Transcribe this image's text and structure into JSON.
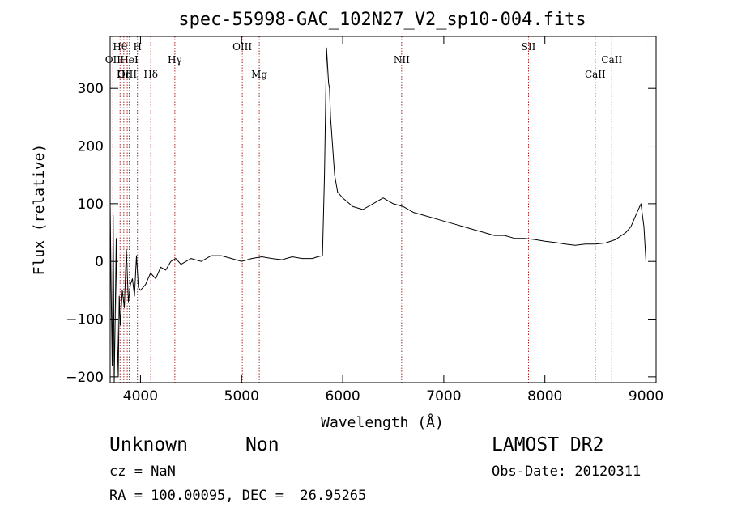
{
  "chart_data": {
    "type": "line",
    "title": "spec-55998-GAC_102N27_V2_sp10-004.fits",
    "xlabel": "Wavelength (Å)",
    "ylabel": "Flux (relative)",
    "xlim": [
      3700,
      9100
    ],
    "ylim": [
      -210,
      390
    ],
    "xticks": [
      4000,
      5000,
      6000,
      7000,
      8000,
      9000
    ],
    "yticks": [
      -200,
      -100,
      0,
      100,
      200,
      300
    ],
    "grid": false,
    "series": [
      {
        "x": [
          3700,
          3710,
          3720,
          3730,
          3740,
          3750,
          3760,
          3770,
          3780,
          3790,
          3800,
          3820,
          3840,
          3860,
          3880,
          3900,
          3920,
          3940,
          3960,
          3980,
          4000,
          4050,
          4100,
          4150,
          4200,
          4250,
          4300,
          4350,
          4400,
          4500,
          4600,
          4700,
          4800,
          4900,
          5000,
          5100,
          5200,
          5300,
          5400,
          5500,
          5600,
          5700,
          5750,
          5800,
          5820,
          5840,
          5850,
          5860,
          5870,
          5880,
          5900,
          5920,
          5950,
          6000,
          6100,
          6200,
          6300,
          6400,
          6500,
          6600,
          6700,
          6800,
          6900,
          7000,
          7100,
          7200,
          7300,
          7400,
          7500,
          7600,
          7700,
          7800,
          7900,
          8000,
          8100,
          8200,
          8300,
          8400,
          8500,
          8600,
          8700,
          8800,
          8850,
          8900,
          8950,
          8980,
          9000
        ],
        "y": [
          100,
          -50,
          -180,
          80,
          -210,
          -100,
          40,
          -120,
          -200,
          -60,
          -110,
          -50,
          -80,
          20,
          -70,
          -40,
          -30,
          -60,
          10,
          -45,
          -50,
          -40,
          -20,
          -30,
          -10,
          -15,
          0,
          5,
          -5,
          5,
          0,
          10,
          10,
          5,
          0,
          5,
          8,
          5,
          3,
          8,
          5,
          5,
          8,
          10,
          150,
          370,
          340,
          310,
          300,
          250,
          200,
          150,
          120,
          110,
          95,
          90,
          100,
          110,
          100,
          95,
          85,
          80,
          75,
          70,
          65,
          60,
          55,
          50,
          45,
          45,
          40,
          40,
          38,
          35,
          33,
          30,
          28,
          30,
          30,
          32,
          38,
          50,
          60,
          80,
          100,
          60,
          0
        ]
      }
    ],
    "line_markers": [
      {
        "label": "Hθ",
        "x": 3798,
        "row": 1
      },
      {
        "label": "H",
        "x": 3970,
        "row": 1
      },
      {
        "label": "OII",
        "x": 3727,
        "row": 2
      },
      {
        "label": "HeI",
        "x": 3889,
        "row": 2
      },
      {
        "label": "Hγ",
        "x": 4340,
        "row": 2
      },
      {
        "label": "OIII",
        "x": 5007,
        "row": 1
      },
      {
        "label": "OIII",
        "x": 3869,
        "row": 3
      },
      {
        "label": "Hη",
        "x": 3835,
        "row": 3
      },
      {
        "label": "Hδ",
        "x": 4102,
        "row": 3
      },
      {
        "label": "Mg",
        "x": 5175,
        "row": 3
      },
      {
        "label": "NII",
        "x": 6583,
        "row": 2
      },
      {
        "label": "SII",
        "x": 7838,
        "row": 1
      },
      {
        "label": "CaII",
        "x": 8662,
        "row": 2
      },
      {
        "label": "CaII",
        "x": 8498,
        "row": 3
      }
    ]
  },
  "info": {
    "object_class": "Unknown",
    "object_subclass": "Non",
    "survey": "LAMOST DR2",
    "cz": "cz = NaN",
    "obs_date": "Obs-Date: 20120311",
    "coords": "RA = 100.00095, DEC =  26.95265"
  }
}
